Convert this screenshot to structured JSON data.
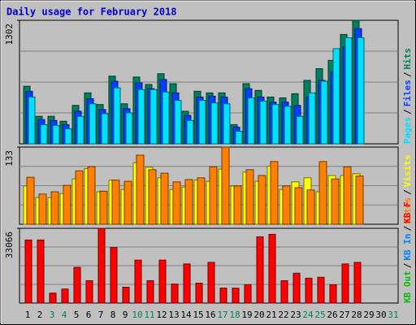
{
  "title": "Daily usage for February 2018",
  "separator": "/",
  "chart_data": [
    {
      "type": "bar",
      "ylim": [
        0,
        1302
      ],
      "yticks": [
        1302
      ],
      "series": [
        {
          "name": "Hits",
          "color": "#00805c",
          "values": [
            607,
            290,
            290,
            238,
            405,
            537,
            414,
            713,
            422,
            704,
            625,
            739,
            634,
            343,
            554,
            537,
            537,
            202,
            634,
            563,
            493,
            484,
            528,
            669,
            792,
            880,
            1153,
            1302,
            null,
            null,
            null
          ]
        },
        {
          "name": "Files",
          "color": "#0040ff",
          "values": [
            554,
            255,
            246,
            202,
            343,
            475,
            361,
            660,
            370,
            642,
            581,
            678,
            537,
            299,
            493,
            502,
            493,
            176,
            581,
            493,
            440,
            440,
            405,
            493,
            669,
            757,
            1021,
            1214,
            null,
            null,
            null
          ]
        },
        {
          "name": "Pages",
          "color": "#00e0ff",
          "values": [
            493,
            202,
            194,
            158,
            290,
            422,
            317,
            590,
            326,
            572,
            572,
            546,
            458,
            246,
            458,
            431,
            422,
            132,
            484,
            449,
            414,
            396,
            290,
            537,
            660,
            1003,
            1118,
            1118,
            null,
            null,
            null
          ]
        }
      ]
    },
    {
      "type": "bar",
      "ylim": [
        0,
        133
      ],
      "yticks": [
        133
      ],
      "series": [
        {
          "name": "Visits",
          "color": "#ffff00",
          "values": [
            66,
            46,
            46,
            53,
            78,
            96,
            56,
            76,
            60,
            106,
            98,
            80,
            60,
            64,
            76,
            74,
            95,
            66,
            90,
            74,
            100,
            60,
            73,
            80,
            56,
            84,
            84,
            87,
            null,
            null,
            null
          ]
        },
        {
          "name": "Sites",
          "color": "#ff8000",
          "values": [
            81,
            52,
            56,
            67,
            92,
            99,
            57,
            76,
            74,
            119,
            94,
            88,
            73,
            77,
            80,
            99,
            133,
            66,
            94,
            84,
            108,
            66,
            63,
            59,
            108,
            78,
            99,
            83,
            null,
            null,
            null
          ]
        }
      ]
    },
    {
      "type": "bar",
      "ylim": [
        0,
        33066
      ],
      "yticks": [
        33066
      ],
      "categories": [
        "1",
        "2",
        "3",
        "4",
        "5",
        "6",
        "7",
        "8",
        "9",
        "10",
        "11",
        "12",
        "13",
        "14",
        "15",
        "16",
        "17",
        "18",
        "19",
        "20",
        "21",
        "22",
        "23",
        "24",
        "25",
        "26",
        "27",
        "28",
        "29",
        "30",
        "31"
      ],
      "category_colors": [
        "#000000",
        "#000000",
        "#00805c",
        "#00805c",
        "#000000",
        "#000000",
        "#000000",
        "#000000",
        "#000000",
        "#00805c",
        "#00805c",
        "#000000",
        "#000000",
        "#000000",
        "#000000",
        "#000000",
        "#00805c",
        "#00805c",
        "#000000",
        "#000000",
        "#000000",
        "#000000",
        "#000000",
        "#00805c",
        "#00805c",
        "#000000",
        "#000000",
        "#000000",
        "#000000",
        "#000000",
        "#00805c"
      ],
      "series": [
        {
          "name": "KB F",
          "color": "#ff0000",
          "values": [
            27892,
            27892,
            4400,
            6200,
            15800,
            9900,
            33066,
            24600,
            7000,
            19000,
            9900,
            19000,
            8400,
            17300,
            8800,
            18000,
            6600,
            6600,
            8100,
            29300,
            30400,
            9900,
            13200,
            11000,
            11400,
            8100,
            17300,
            18000,
            null,
            null,
            null
          ]
        },
        {
          "name": "KB In",
          "color": "#0080ff",
          "values": [
            0,
            0,
            0,
            0,
            0,
            0,
            0,
            0,
            0,
            0,
            0,
            0,
            0,
            0,
            0,
            0,
            0,
            0,
            0,
            0,
            0,
            0,
            0,
            0,
            0,
            0,
            0,
            0,
            null,
            null,
            null
          ]
        },
        {
          "name": "KB Out",
          "color": "#00c000",
          "values": [
            0,
            0,
            0,
            0,
            0,
            0,
            0,
            0,
            0,
            0,
            0,
            0,
            0,
            0,
            0,
            0,
            0,
            0,
            0,
            0,
            0,
            0,
            0,
            0,
            0,
            0,
            0,
            0,
            null,
            null,
            null
          ]
        }
      ]
    }
  ]
}
